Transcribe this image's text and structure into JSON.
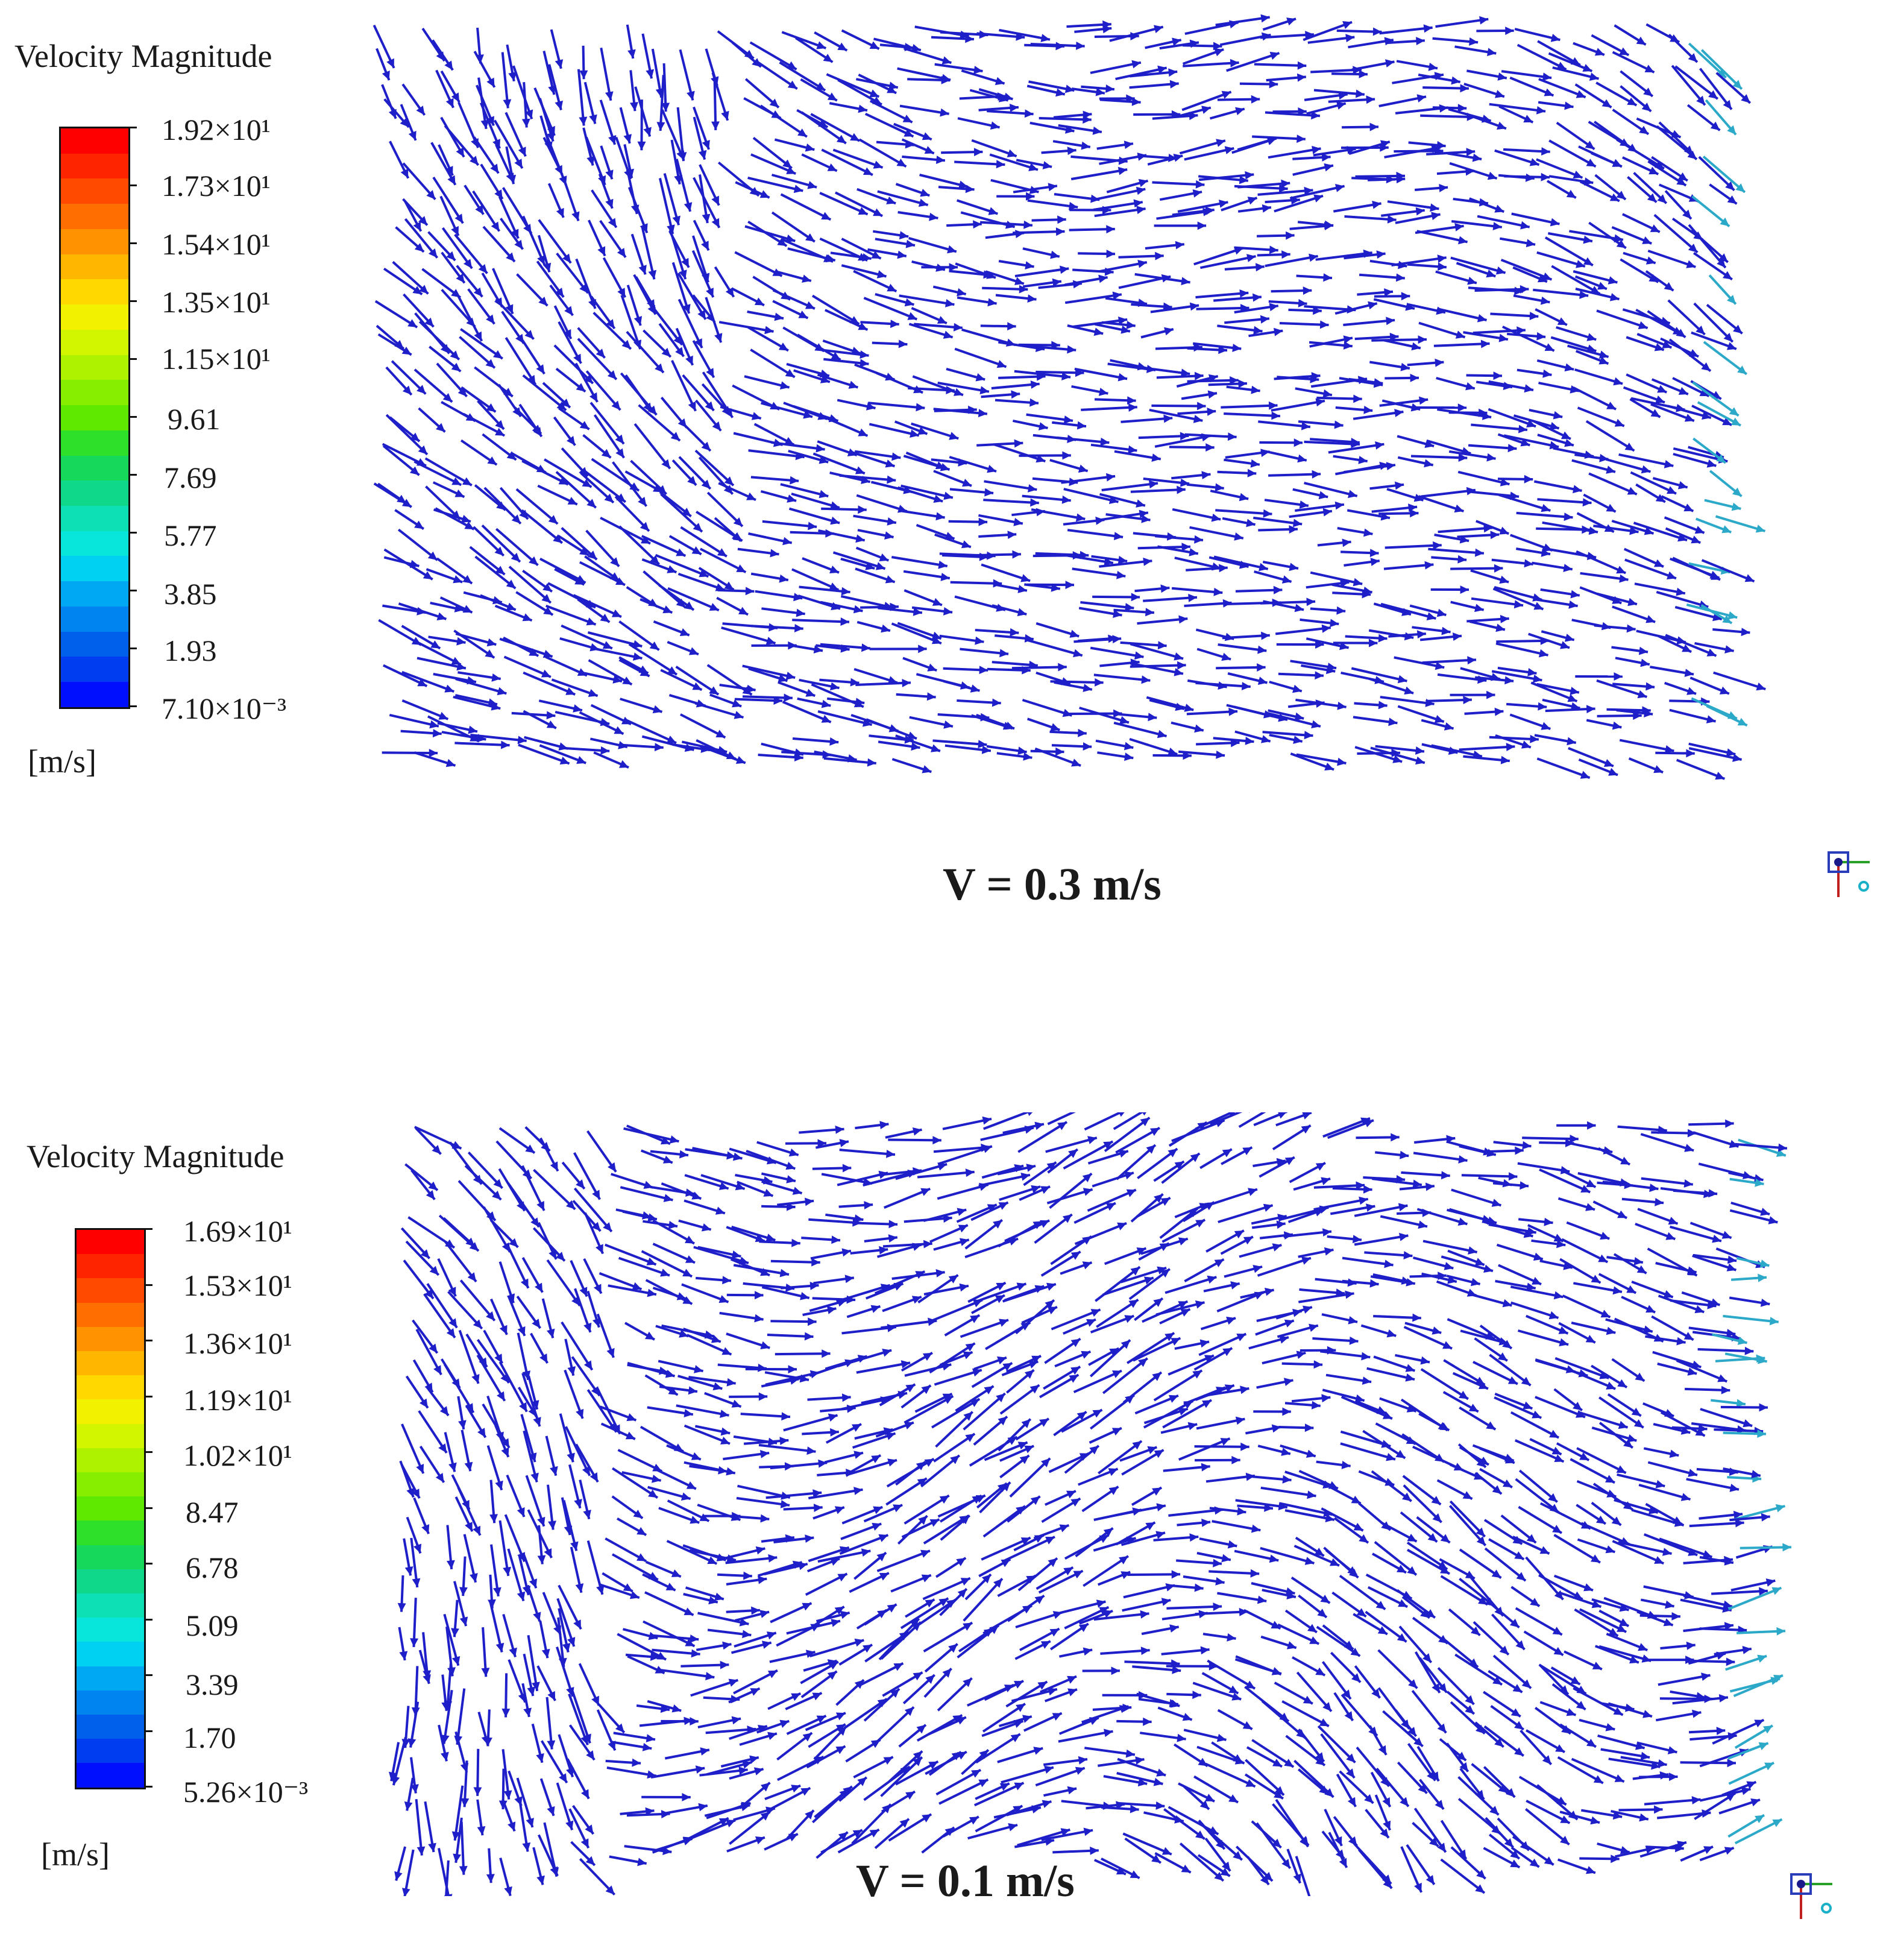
{
  "panels": [
    {
      "legend_title": "Velocity Magnitude",
      "unit": "[m/s]",
      "caption": "V = 0.3 m/s",
      "tick_labels": [
        "1.92×10¹",
        "1.73×10¹",
        "1.54×10¹",
        "1.35×10¹",
        "1.15×10¹",
        "9.61",
        "7.69",
        "5.77",
        "3.85",
        "1.93",
        "7.10×10⁻³"
      ]
    },
    {
      "legend_title": "Velocity Magnitude",
      "unit": "[m/s]",
      "caption": "V = 0.1 m/s",
      "tick_labels": [
        "1.69×10¹",
        "1.53×10¹",
        "1.36×10¹",
        "1.19×10¹",
        "1.02×10¹",
        "8.47",
        "6.78",
        "5.09",
        "3.39",
        "1.70",
        "5.26×10⁻³"
      ]
    }
  ],
  "colormap": [
    "#ff0000",
    "#ff2400",
    "#ff4a00",
    "#ff6e00",
    "#ff9200",
    "#ffb600",
    "#ffd800",
    "#f2f200",
    "#d2f500",
    "#aef200",
    "#88ee00",
    "#5fe800",
    "#2fe02a",
    "#16d85a",
    "#10d88a",
    "#0de0b4",
    "#08e6dc",
    "#00d0f2",
    "#00a8f4",
    "#0084f0",
    "#0060ec",
    "#003cf0",
    "#0010ff"
  ],
  "colors": {
    "vector_main": "#1f1fc9",
    "vector_outlet": "#2ca9c8",
    "text": "#1a1a1a"
  }
}
